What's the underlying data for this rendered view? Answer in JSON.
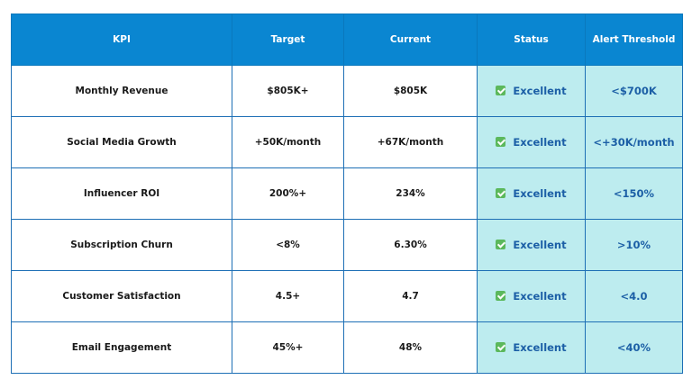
{
  "table": {
    "header": [
      "KPI",
      "Target",
      "Current",
      "Status",
      "Alert Threshold"
    ],
    "rows": [
      [
        "Monthly Revenue",
        "$805K+",
        "$805K",
        "Excellent",
        "<$700K"
      ],
      [
        "Social Media Growth",
        "+50K/month",
        "+67K/month",
        "Excellent",
        "<+30K/month"
      ],
      [
        "Influencer ROI",
        "200%+",
        "234%",
        "Excellent",
        "<150%"
      ],
      [
        "Subscription Churn",
        "<8%",
        "6.30%",
        "Excellent",
        ">10%"
      ],
      [
        "Customer Satisfaction",
        "4.5+",
        "4.7",
        "Excellent",
        "<4.0"
      ],
      [
        "Email Engagement",
        "45%+",
        "48%",
        "Excellent",
        "<40%"
      ]
    ]
  }
}
